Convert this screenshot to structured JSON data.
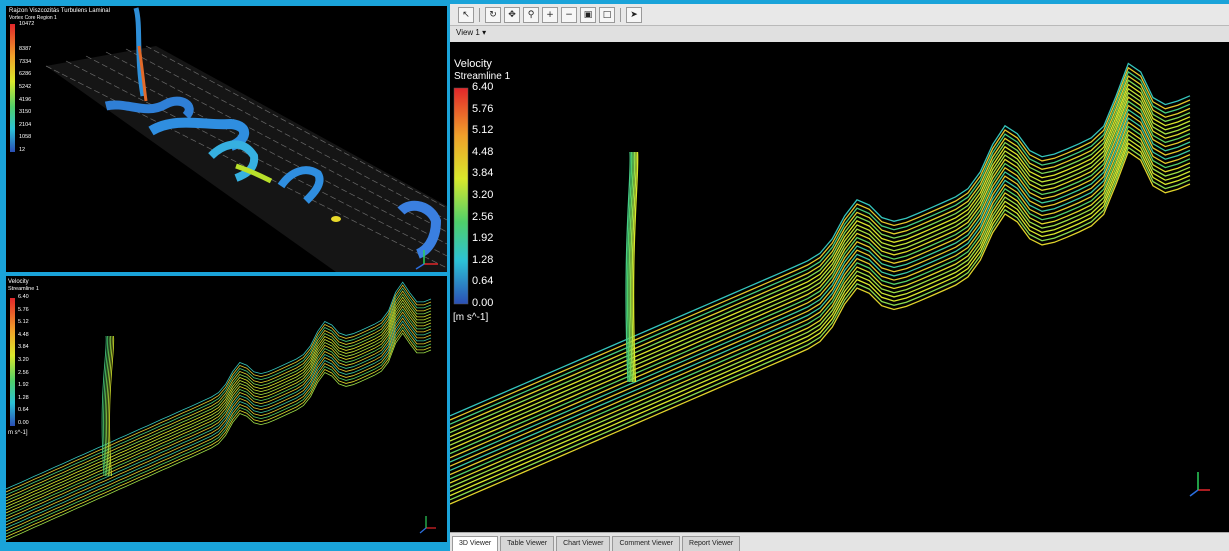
{
  "top_left": {
    "legend_title": "Rajzon Viszcozitás Turbulens Laminal",
    "legend_subtitle": "Vortex Core Region 1",
    "legend_values": [
      "10472",
      "",
      "8387",
      "7334",
      "6286",
      "5242",
      "4196",
      "3150",
      "2104",
      "1058",
      "12"
    ]
  },
  "bottom_left": {
    "legend_title": "Velocity",
    "legend_subtitle": "Streamline 1",
    "legend_values": [
      "6.40",
      "5.76",
      "5.12",
      "4.48",
      "3.84",
      "3.20",
      "2.56",
      "1.92",
      "1.28",
      "0.64",
      "0.00"
    ],
    "legend_unit": "m s^-1]"
  },
  "main_view": {
    "view_selector": "View 1",
    "legend_title": "Velocity",
    "legend_subtitle": "Streamline 1",
    "legend_values": [
      "6.40",
      "5.76",
      "5.12",
      "4.48",
      "3.84",
      "3.20",
      "2.56",
      "1.92",
      "1.28",
      "0.64",
      "0.00"
    ],
    "legend_unit": "[m s^-1]",
    "tabs": [
      "3D Viewer",
      "Table Viewer",
      "Chart Viewer",
      "Comment Viewer",
      "Report Viewer"
    ],
    "active_tab": "3D Viewer"
  },
  "toolbar_icons": [
    "select-icon",
    "rotate-icon",
    "pan-icon",
    "zoom-box-icon",
    "zoom-in-icon",
    "zoom-out-icon",
    "zoom-fit-icon",
    "view-layout-icon",
    "probe-icon"
  ],
  "colors": {
    "frame": "#1aa3d9",
    "background": "#000000",
    "scale_high": "#e2262a",
    "scale_mid": "#d9e82b",
    "scale_low": "#2b4fb5"
  }
}
